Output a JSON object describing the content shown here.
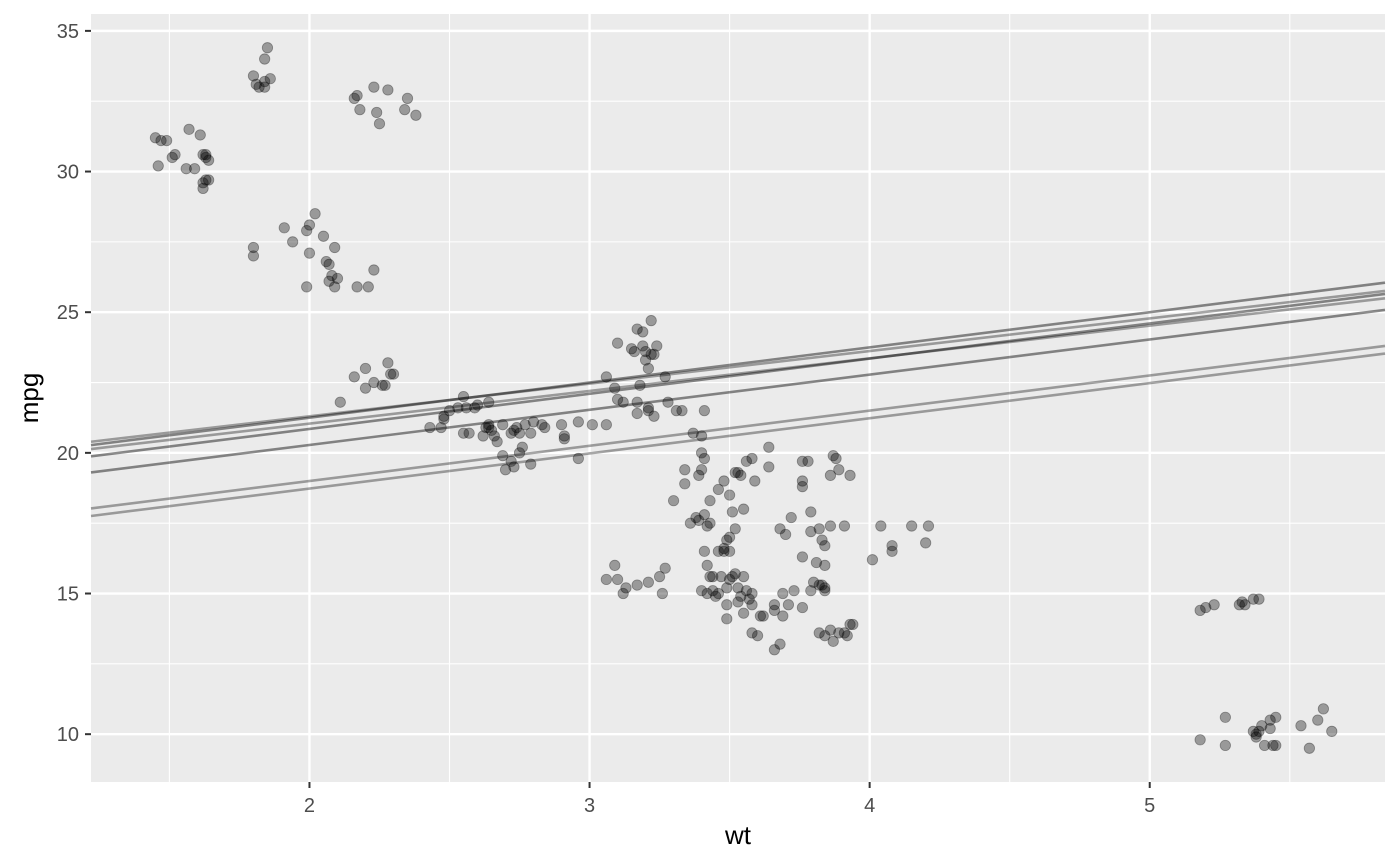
{
  "chart_data": {
    "type": "scatter",
    "title": "",
    "xlabel": "wt",
    "ylabel": "mpg",
    "xlim": [
      1.22,
      5.84
    ],
    "ylim": [
      8.3,
      35.6
    ],
    "x_ticks": [
      2,
      3,
      4,
      5
    ],
    "x_tick_labels": [
      "2",
      "3",
      "4",
      "5"
    ],
    "y_ticks": [
      10,
      15,
      20,
      25,
      30,
      35
    ],
    "y_tick_labels": [
      "10",
      "15",
      "20",
      "25",
      "30",
      "35"
    ],
    "grid": true,
    "background": "#ebebeb",
    "grid_color": "#ffffff",
    "point_color": "#000000",
    "point_alpha": 0.35,
    "line_color": "#000000",
    "points": [
      [
        1.45,
        31.2
      ],
      [
        1.47,
        31.1
      ],
      [
        1.49,
        31.1
      ],
      [
        1.46,
        30.2
      ],
      [
        1.51,
        30.5
      ],
      [
        1.52,
        30.6
      ],
      [
        1.57,
        31.5
      ],
      [
        1.61,
        31.3
      ],
      [
        1.56,
        30.1
      ],
      [
        1.59,
        30.1
      ],
      [
        1.62,
        30.6
      ],
      [
        1.63,
        30.6
      ],
      [
        1.64,
        30.4
      ],
      [
        1.63,
        30.5
      ],
      [
        1.63,
        29.7
      ],
      [
        1.62,
        29.6
      ],
      [
        1.64,
        29.7
      ],
      [
        1.62,
        29.4
      ],
      [
        1.8,
        33.4
      ],
      [
        1.81,
        33.1
      ],
      [
        1.82,
        33.0
      ],
      [
        1.84,
        33.2
      ],
      [
        1.86,
        33.3
      ],
      [
        1.84,
        34.0
      ],
      [
        1.85,
        34.4
      ],
      [
        1.84,
        33.0
      ],
      [
        2.16,
        32.6
      ],
      [
        2.17,
        32.7
      ],
      [
        2.18,
        32.2
      ],
      [
        2.23,
        33.0
      ],
      [
        2.28,
        32.9
      ],
      [
        2.24,
        32.1
      ],
      [
        2.25,
        31.7
      ],
      [
        2.35,
        32.6
      ],
      [
        2.34,
        32.2
      ],
      [
        2.38,
        32.0
      ],
      [
        1.8,
        27.3
      ],
      [
        1.8,
        27.0
      ],
      [
        1.91,
        28.0
      ],
      [
        1.94,
        27.5
      ],
      [
        1.99,
        27.9
      ],
      [
        2.0,
        28.1
      ],
      [
        2.02,
        28.5
      ],
      [
        2.05,
        27.7
      ],
      [
        2.0,
        27.1
      ],
      [
        2.09,
        27.3
      ],
      [
        2.06,
        26.8
      ],
      [
        2.07,
        26.7
      ],
      [
        2.08,
        26.3
      ],
      [
        2.07,
        26.1
      ],
      [
        2.1,
        26.2
      ],
      [
        2.09,
        25.9
      ],
      [
        1.99,
        25.9
      ],
      [
        2.17,
        25.9
      ],
      [
        2.21,
        25.9
      ],
      [
        2.23,
        26.5
      ],
      [
        2.11,
        21.8
      ],
      [
        2.16,
        22.7
      ],
      [
        2.2,
        23.0
      ],
      [
        2.2,
        22.3
      ],
      [
        2.23,
        22.5
      ],
      [
        2.26,
        22.4
      ],
      [
        2.27,
        22.4
      ],
      [
        2.28,
        23.2
      ],
      [
        2.29,
        22.8
      ],
      [
        2.3,
        22.8
      ],
      [
        2.43,
        20.9
      ],
      [
        2.47,
        20.9
      ],
      [
        2.48,
        21.3
      ],
      [
        2.48,
        21.2
      ],
      [
        2.5,
        21.5
      ],
      [
        2.53,
        21.6
      ],
      [
        2.55,
        22.0
      ],
      [
        2.56,
        21.6
      ],
      [
        2.59,
        21.6
      ],
      [
        2.55,
        20.7
      ],
      [
        2.57,
        20.7
      ],
      [
        2.6,
        21.7
      ],
      [
        2.64,
        21.8
      ],
      [
        2.62,
        20.6
      ],
      [
        2.63,
        20.9
      ],
      [
        2.64,
        20.9
      ],
      [
        2.64,
        21.0
      ],
      [
        2.65,
        20.8
      ],
      [
        2.66,
        20.6
      ],
      [
        2.67,
        20.4
      ],
      [
        2.69,
        21.0
      ],
      [
        2.72,
        20.7
      ],
      [
        2.73,
        20.8
      ],
      [
        2.74,
        20.9
      ],
      [
        2.75,
        20.7
      ],
      [
        2.76,
        20.2
      ],
      [
        2.77,
        21.0
      ],
      [
        2.79,
        20.7
      ],
      [
        2.8,
        21.1
      ],
      [
        2.83,
        21.0
      ],
      [
        2.84,
        20.9
      ],
      [
        2.9,
        21.0
      ],
      [
        2.91,
        20.6
      ],
      [
        2.91,
        20.5
      ],
      [
        2.96,
        21.1
      ],
      [
        3.01,
        21.0
      ],
      [
        3.06,
        21.0
      ],
      [
        2.69,
        19.9
      ],
      [
        2.7,
        19.4
      ],
      [
        2.72,
        19.7
      ],
      [
        2.73,
        19.5
      ],
      [
        2.79,
        19.6
      ],
      [
        2.96,
        19.8
      ],
      [
        2.75,
        20.0
      ],
      [
        3.06,
        22.7
      ],
      [
        3.09,
        22.3
      ],
      [
        3.1,
        21.9
      ],
      [
        3.12,
        21.8
      ],
      [
        3.1,
        23.9
      ],
      [
        3.15,
        23.7
      ],
      [
        3.16,
        23.6
      ],
      [
        3.17,
        24.4
      ],
      [
        3.19,
        24.3
      ],
      [
        3.2,
        23.6
      ],
      [
        3.2,
        23.3
      ],
      [
        3.21,
        23.0
      ],
      [
        3.22,
        23.5
      ],
      [
        3.22,
        24.7
      ],
      [
        3.24,
        23.8
      ],
      [
        3.23,
        23.5
      ],
      [
        3.17,
        21.8
      ],
      [
        3.17,
        21.4
      ],
      [
        3.21,
        21.5
      ],
      [
        3.21,
        21.6
      ],
      [
        3.23,
        21.3
      ],
      [
        3.27,
        22.7
      ],
      [
        3.28,
        21.8
      ],
      [
        3.31,
        21.5
      ],
      [
        3.33,
        21.5
      ],
      [
        3.41,
        21.5
      ],
      [
        3.18,
        22.4
      ],
      [
        3.19,
        23.8
      ],
      [
        3.3,
        18.3
      ],
      [
        3.34,
        18.9
      ],
      [
        3.34,
        19.4
      ],
      [
        3.36,
        17.5
      ],
      [
        3.38,
        17.7
      ],
      [
        3.39,
        17.6
      ],
      [
        3.39,
        19.2
      ],
      [
        3.4,
        19.4
      ],
      [
        3.41,
        17.8
      ],
      [
        3.42,
        17.4
      ],
      [
        3.43,
        17.5
      ],
      [
        3.43,
        18.3
      ],
      [
        3.46,
        18.7
      ],
      [
        3.48,
        19.0
      ],
      [
        3.5,
        18.5
      ],
      [
        3.51,
        17.9
      ],
      [
        3.52,
        19.3
      ],
      [
        3.52,
        17.3
      ],
      [
        3.53,
        19.3
      ],
      [
        3.54,
        19.2
      ],
      [
        3.55,
        18.0
      ],
      [
        3.56,
        19.7
      ],
      [
        3.58,
        19.8
      ],
      [
        3.59,
        19.0
      ],
      [
        3.64,
        20.2
      ],
      [
        3.64,
        19.5
      ],
      [
        3.37,
        20.7
      ],
      [
        3.4,
        20.6
      ],
      [
        3.4,
        20.0
      ],
      [
        3.41,
        19.8
      ],
      [
        3.68,
        17.3
      ],
      [
        3.7,
        17.1
      ],
      [
        3.72,
        17.7
      ],
      [
        3.76,
        16.3
      ],
      [
        3.76,
        19.7
      ],
      [
        3.78,
        19.7
      ],
      [
        3.76,
        19.0
      ],
      [
        3.76,
        18.8
      ],
      [
        3.79,
        17.9
      ],
      [
        3.79,
        17.2
      ],
      [
        3.81,
        16.1
      ],
      [
        3.82,
        17.3
      ],
      [
        3.83,
        16.9
      ],
      [
        3.84,
        16.7
      ],
      [
        3.84,
        16.0
      ],
      [
        3.86,
        17.4
      ],
      [
        3.86,
        19.2
      ],
      [
        3.87,
        19.9
      ],
      [
        3.88,
        19.8
      ],
      [
        3.89,
        19.4
      ],
      [
        3.91,
        17.4
      ],
      [
        3.93,
        19.2
      ],
      [
        4.01,
        16.2
      ],
      [
        4.04,
        17.4
      ],
      [
        4.08,
        16.7
      ],
      [
        4.08,
        16.5
      ],
      [
        4.15,
        17.4
      ],
      [
        4.2,
        16.8
      ],
      [
        4.21,
        17.4
      ],
      [
        3.09,
        16.0
      ],
      [
        3.06,
        15.5
      ],
      [
        3.1,
        15.5
      ],
      [
        3.12,
        15.0
      ],
      [
        3.13,
        15.2
      ],
      [
        3.17,
        15.3
      ],
      [
        3.21,
        15.4
      ],
      [
        3.25,
        15.6
      ],
      [
        3.27,
        15.9
      ],
      [
        3.26,
        15.0
      ],
      [
        3.4,
        15.1
      ],
      [
        3.42,
        15.0
      ],
      [
        3.42,
        16.0
      ],
      [
        3.43,
        15.6
      ],
      [
        3.44,
        15.6
      ],
      [
        3.44,
        15.1
      ],
      [
        3.45,
        14.9
      ],
      [
        3.46,
        15.0
      ],
      [
        3.47,
        15.6
      ],
      [
        3.48,
        16.5
      ],
      [
        3.49,
        15.2
      ],
      [
        3.49,
        14.6
      ],
      [
        3.5,
        16.5
      ],
      [
        3.5,
        15.5
      ],
      [
        3.51,
        15.6
      ],
      [
        3.52,
        15.7
      ],
      [
        3.53,
        15.2
      ],
      [
        3.53,
        14.7
      ],
      [
        3.54,
        14.9
      ],
      [
        3.55,
        15.6
      ],
      [
        3.56,
        15.1
      ],
      [
        3.57,
        14.8
      ],
      [
        3.58,
        15.0
      ],
      [
        3.58,
        14.6
      ],
      [
        3.61,
        14.2
      ],
      [
        3.49,
        14.1
      ],
      [
        3.55,
        14.3
      ],
      [
        3.58,
        13.6
      ],
      [
        3.6,
        13.5
      ],
      [
        3.62,
        14.2
      ],
      [
        3.66,
        14.6
      ],
      [
        3.66,
        14.4
      ],
      [
        3.69,
        15.0
      ],
      [
        3.69,
        14.2
      ],
      [
        3.71,
        14.6
      ],
      [
        3.73,
        15.1
      ],
      [
        3.66,
        13.0
      ],
      [
        3.68,
        13.2
      ],
      [
        3.76,
        14.5
      ],
      [
        3.79,
        15.1
      ],
      [
        3.8,
        15.4
      ],
      [
        3.82,
        15.3
      ],
      [
        3.83,
        15.3
      ],
      [
        3.84,
        15.2
      ],
      [
        3.84,
        15.1
      ],
      [
        3.82,
        13.6
      ],
      [
        3.84,
        13.5
      ],
      [
        3.86,
        13.7
      ],
      [
        3.87,
        13.3
      ],
      [
        3.89,
        13.6
      ],
      [
        3.91,
        13.6
      ],
      [
        3.92,
        13.5
      ],
      [
        3.93,
        13.9
      ],
      [
        3.94,
        13.9
      ],
      [
        3.41,
        16.5
      ],
      [
        3.46,
        16.5
      ],
      [
        3.49,
        16.9
      ],
      [
        3.5,
        17.0
      ],
      [
        3.48,
        16.6
      ],
      [
        5.18,
        14.4
      ],
      [
        5.2,
        14.5
      ],
      [
        5.23,
        14.6
      ],
      [
        5.32,
        14.6
      ],
      [
        5.33,
        14.7
      ],
      [
        5.34,
        14.6
      ],
      [
        5.37,
        14.8
      ],
      [
        5.39,
        14.8
      ],
      [
        5.18,
        9.8
      ],
      [
        5.27,
        10.6
      ],
      [
        5.27,
        9.6
      ],
      [
        5.37,
        10.1
      ],
      [
        5.38,
        10.0
      ],
      [
        5.38,
        9.9
      ],
      [
        5.39,
        10.1
      ],
      [
        5.4,
        10.3
      ],
      [
        5.41,
        9.6
      ],
      [
        5.43,
        10.2
      ],
      [
        5.43,
        10.5
      ],
      [
        5.45,
        10.6
      ],
      [
        5.44,
        9.6
      ],
      [
        5.45,
        9.6
      ],
      [
        5.54,
        10.3
      ],
      [
        5.57,
        9.5
      ],
      [
        5.6,
        10.5
      ],
      [
        5.62,
        10.9
      ],
      [
        5.65,
        10.1
      ]
    ],
    "lines": [
      {
        "intercept": 18.75,
        "slope": 1.25,
        "alpha": 0.45
      },
      {
        "intercept": 18.35,
        "slope": 1.25,
        "alpha": 0.45
      },
      {
        "intercept": 17.78,
        "slope": 1.25,
        "alpha": 0.45
      },
      {
        "intercept": 18.72,
        "slope": 1.16,
        "alpha": 0.35
      },
      {
        "intercept": 18.98,
        "slope": 1.16,
        "alpha": 0.35
      },
      {
        "intercept": 16.23,
        "slope": 1.25,
        "alpha": 0.35
      },
      {
        "intercept": 16.5,
        "slope": 1.25,
        "alpha": 0.35
      }
    ]
  }
}
